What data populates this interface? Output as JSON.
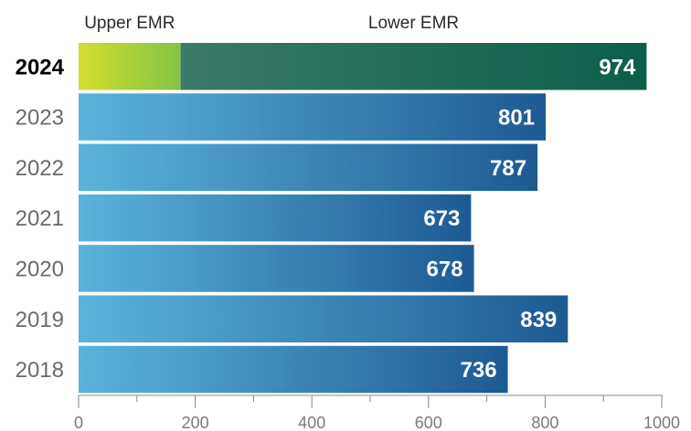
{
  "chart_data": {
    "type": "bar",
    "orientation": "horizontal",
    "categories": [
      "2024",
      "2023",
      "2022",
      "2021",
      "2020",
      "2019",
      "2018"
    ],
    "values": [
      974,
      801,
      787,
      673,
      678,
      839,
      736
    ],
    "highlight_category": "2024",
    "segments": [
      {
        "category": "2024",
        "name": "Upper EMR",
        "value": 175
      },
      {
        "category": "2024",
        "name": "Lower EMR",
        "value": 799
      }
    ],
    "xlim": [
      0,
      1000
    ],
    "x_ticks": [
      0,
      200,
      400,
      600,
      800,
      1000
    ],
    "x_minor_ticks": [
      100,
      300,
      500,
      700,
      900
    ],
    "title": "",
    "xlabel": "",
    "ylabel": "",
    "grid": false,
    "legend": "none"
  },
  "colors": {
    "bar_gradient_start": "#5bb4dc",
    "bar_gradient_end": "#1d5a93",
    "upper_gradient_start": "#d4df2e",
    "upper_gradient_end": "#84c345",
    "lower_gradient_start": "#3b7a6a",
    "lower_gradient_end": "#0b5f4a",
    "value_label": "#ffffff",
    "axis": "#888888"
  }
}
